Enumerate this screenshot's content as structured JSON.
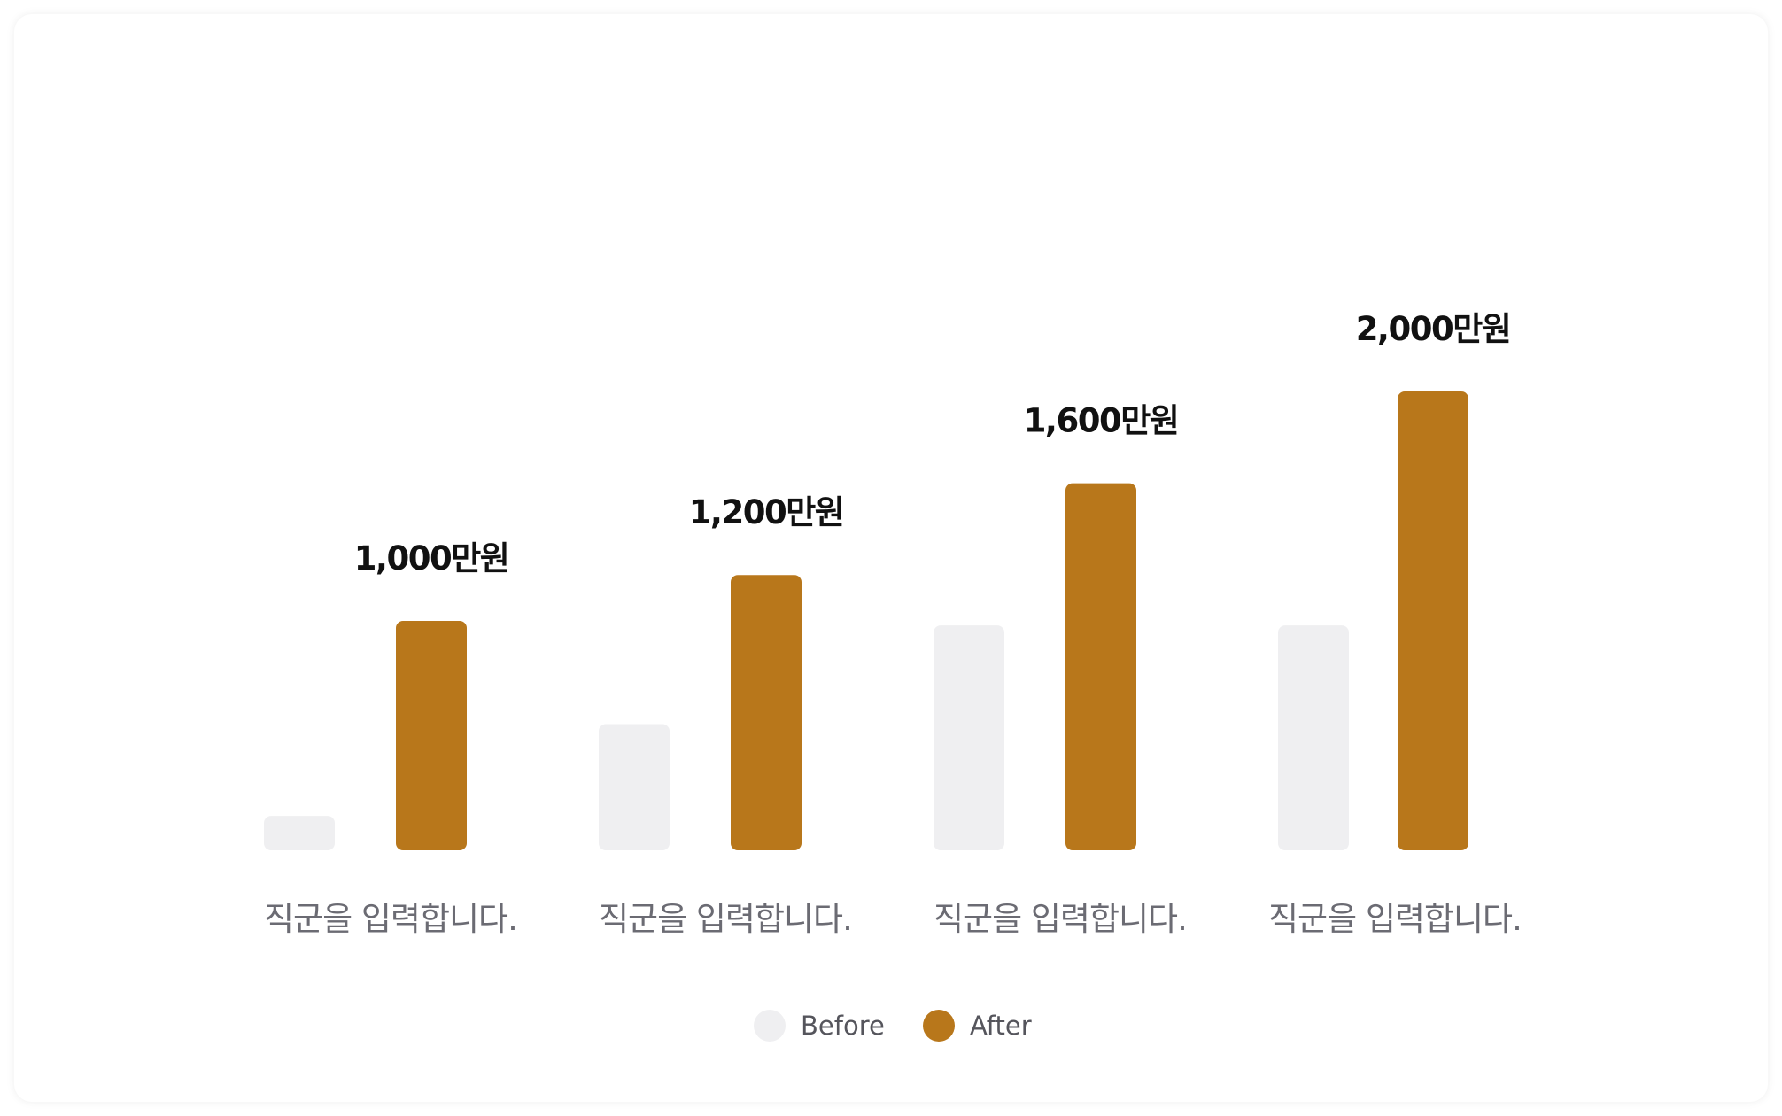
{
  "colors": {
    "before": "#efeff1",
    "after": "#b8771b",
    "value_text": "#111111",
    "category_text": "#6b6b73",
    "legend_text": "#55555c"
  },
  "chart_data": {
    "type": "bar",
    "title": "",
    "xlabel": "",
    "ylabel": "",
    "categories": [
      "직군을 입력합니다.",
      "직군을 입력합니다.",
      "직군을 입력합니다.",
      "직군을 입력합니다."
    ],
    "series": [
      {
        "name": "Before",
        "values": [
          150,
          550,
          980,
          980
        ]
      },
      {
        "name": "After",
        "values": [
          1000,
          1200,
          1600,
          2000
        ]
      }
    ],
    "data_labels": [
      "1,000만원",
      "1,200만원",
      "1,600만원",
      "2,000만원"
    ],
    "ylim": [
      0,
      2000
    ],
    "grid": false,
    "legend_position": "bottom-center"
  }
}
